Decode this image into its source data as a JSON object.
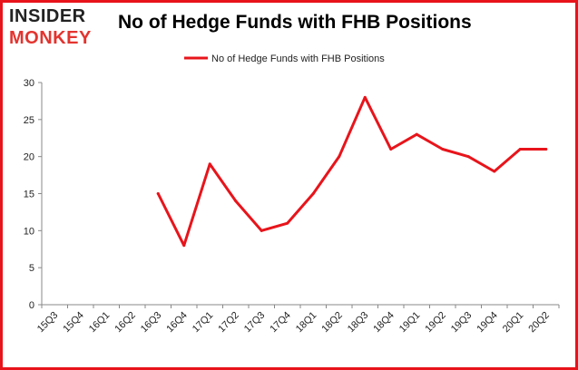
{
  "brand": {
    "logo_top": "INSIDER",
    "logo_bottom": "MONKEY",
    "logo_dark": "#222222",
    "logo_red": "#e3342f"
  },
  "chart_data": {
    "type": "line",
    "title": "No of Hedge Funds with FHB Positions",
    "xlabel": "",
    "ylabel": "",
    "categories": [
      "15Q3",
      "15Q4",
      "16Q1",
      "16Q2",
      "16Q3",
      "16Q4",
      "17Q1",
      "17Q2",
      "17Q3",
      "17Q4",
      "18Q1",
      "18Q2",
      "18Q3",
      "18Q4",
      "19Q1",
      "19Q2",
      "19Q3",
      "19Q4",
      "20Q1",
      "20Q2"
    ],
    "series": [
      {
        "name": "No of Hedge Funds with FHB Positions",
        "color": "#e8141b",
        "values": [
          null,
          null,
          null,
          null,
          15,
          8,
          19,
          14,
          10,
          11,
          15,
          20,
          28,
          21,
          23,
          21,
          20,
          18,
          21,
          21
        ]
      }
    ],
    "ylim": [
      0,
      30
    ],
    "yticks": [
      0,
      5,
      10,
      15,
      20,
      25,
      30
    ],
    "grid": false,
    "legend_position": "top-center",
    "frame_color": "#e8141b"
  }
}
